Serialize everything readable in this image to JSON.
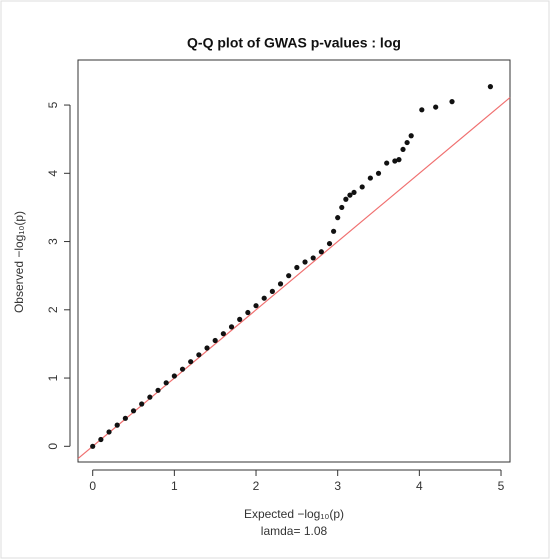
{
  "chart_data": {
    "type": "scatter",
    "title": "Q-Q plot of GWAS p-values : log",
    "x_label": "Expected −log₁₀(p)",
    "y_label": "Observed −log₁₀(p)",
    "subtitle": "lamda= 1.08",
    "x": [
      0,
      0.1,
      0.2,
      0.3,
      0.4,
      0.5,
      0.6,
      0.7,
      0.8,
      0.9,
      1.0,
      1.1,
      1.2,
      1.3,
      1.4,
      1.5,
      1.6,
      1.7,
      1.8,
      1.9,
      2.0,
      2.1,
      2.2,
      2.3,
      2.4,
      2.5,
      2.6,
      2.7,
      2.8,
      2.9,
      2.95,
      3.0,
      3.05,
      3.1,
      3.15,
      3.2,
      3.3,
      3.4,
      3.5,
      3.6,
      3.7,
      3.75,
      3.8,
      3.85,
      3.9,
      4.03,
      4.2,
      4.4,
      4.87
    ],
    "values": [
      0,
      0.1,
      0.21,
      0.31,
      0.41,
      0.52,
      0.62,
      0.72,
      0.82,
      0.93,
      1.03,
      1.13,
      1.24,
      1.34,
      1.44,
      1.55,
      1.65,
      1.75,
      1.86,
      1.96,
      2.06,
      2.17,
      2.27,
      2.38,
      2.5,
      2.62,
      2.7,
      2.76,
      2.85,
      2.97,
      3.15,
      3.35,
      3.5,
      3.62,
      3.68,
      3.72,
      3.8,
      3.93,
      4.0,
      4.15,
      4.18,
      4.2,
      4.35,
      4.45,
      4.55,
      4.93,
      4.97,
      5.05,
      5.27
    ],
    "color": "#111111",
    "reference_line_color": "#f07070",
    "xlim": [
      -0.18,
      5.11
    ],
    "ylim": [
      -0.23,
      5.66
    ],
    "xticks": [
      0,
      1,
      2,
      3,
      4,
      5
    ],
    "yticks": [
      0,
      1,
      2,
      3,
      4,
      5
    ]
  }
}
